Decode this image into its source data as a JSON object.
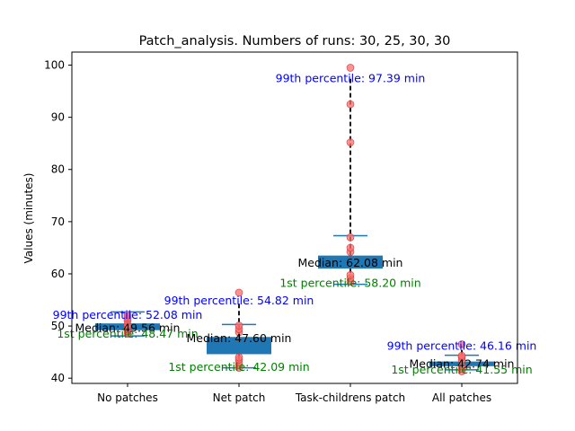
{
  "chart_data": {
    "type": "box",
    "title": "Patch_analysis. Numbers of runs: 30, 25, 30, 30",
    "xlabel": "",
    "ylabel": "Values (minutes)",
    "ylim": [
      39,
      102.5
    ],
    "yticks": [
      40,
      50,
      60,
      70,
      80,
      90,
      100
    ],
    "grid": false,
    "categories": [
      "No patches",
      "Net patch",
      "Task-childrens patch",
      "All patches"
    ],
    "colors": {
      "box": "#1f77b4",
      "points": "#ff6b6b",
      "whisker": "#000000",
      "p99_text": "#0000ff",
      "p1_text": "#008000",
      "median_text": "#000000"
    },
    "boxes": [
      {
        "name": "No patches",
        "q1": 49.2,
        "q3": 50.5,
        "median": 49.56,
        "cap_low": 48.1,
        "cap_high": 52.7,
        "p1": 48.47,
        "p99": 52.08,
        "points": [
          48.5,
          49.0,
          49.4,
          49.8,
          50.2,
          51.0,
          51.4,
          51.8,
          52.1
        ],
        "median_label": "Median: 49.56 min",
        "p99_label": "99th percentile: 52.08 min",
        "p1_label": "1st percentile: 48.47 min"
      },
      {
        "name": "Net patch",
        "q1": 44.6,
        "q3": 47.9,
        "median": 47.6,
        "cap_low": 42.0,
        "cap_high": 50.3,
        "p1": 42.09,
        "p99": 54.82,
        "points": [
          42.0,
          42.5,
          43.0,
          43.6,
          44.0,
          48.8,
          49.4,
          50.1,
          56.4
        ],
        "median_label": "Median: 47.60 min",
        "p99_label": "99th percentile: 54.82 min",
        "p1_label": "1st percentile: 42.09 min"
      },
      {
        "name": "Task-childrens patch",
        "q1": 61.0,
        "q3": 63.5,
        "median": 62.08,
        "cap_low": 58.0,
        "cap_high": 67.3,
        "p1": 58.2,
        "p99": 97.39,
        "points": [
          58.5,
          59.2,
          59.8,
          64.2,
          65.0,
          67.0,
          85.2,
          92.5,
          99.5
        ],
        "median_label": "Median: 62.08 min",
        "p99_label": "99th percentile: 97.39 min",
        "p1_label": "1st percentile: 58.20 min"
      },
      {
        "name": "All patches",
        "q1": 42.3,
        "q3": 43.2,
        "median": 42.74,
        "cap_low": 41.6,
        "cap_high": 44.4,
        "p1": 41.55,
        "p99": 46.16,
        "points": [
          41.3,
          41.8,
          42.3,
          43.5,
          44.0,
          44.3,
          46.5
        ],
        "median_label": "Median: 42.74 min",
        "p99_label": "99th percentile: 46.16 min",
        "p1_label": "1st percentile: 41.55 min"
      }
    ]
  }
}
